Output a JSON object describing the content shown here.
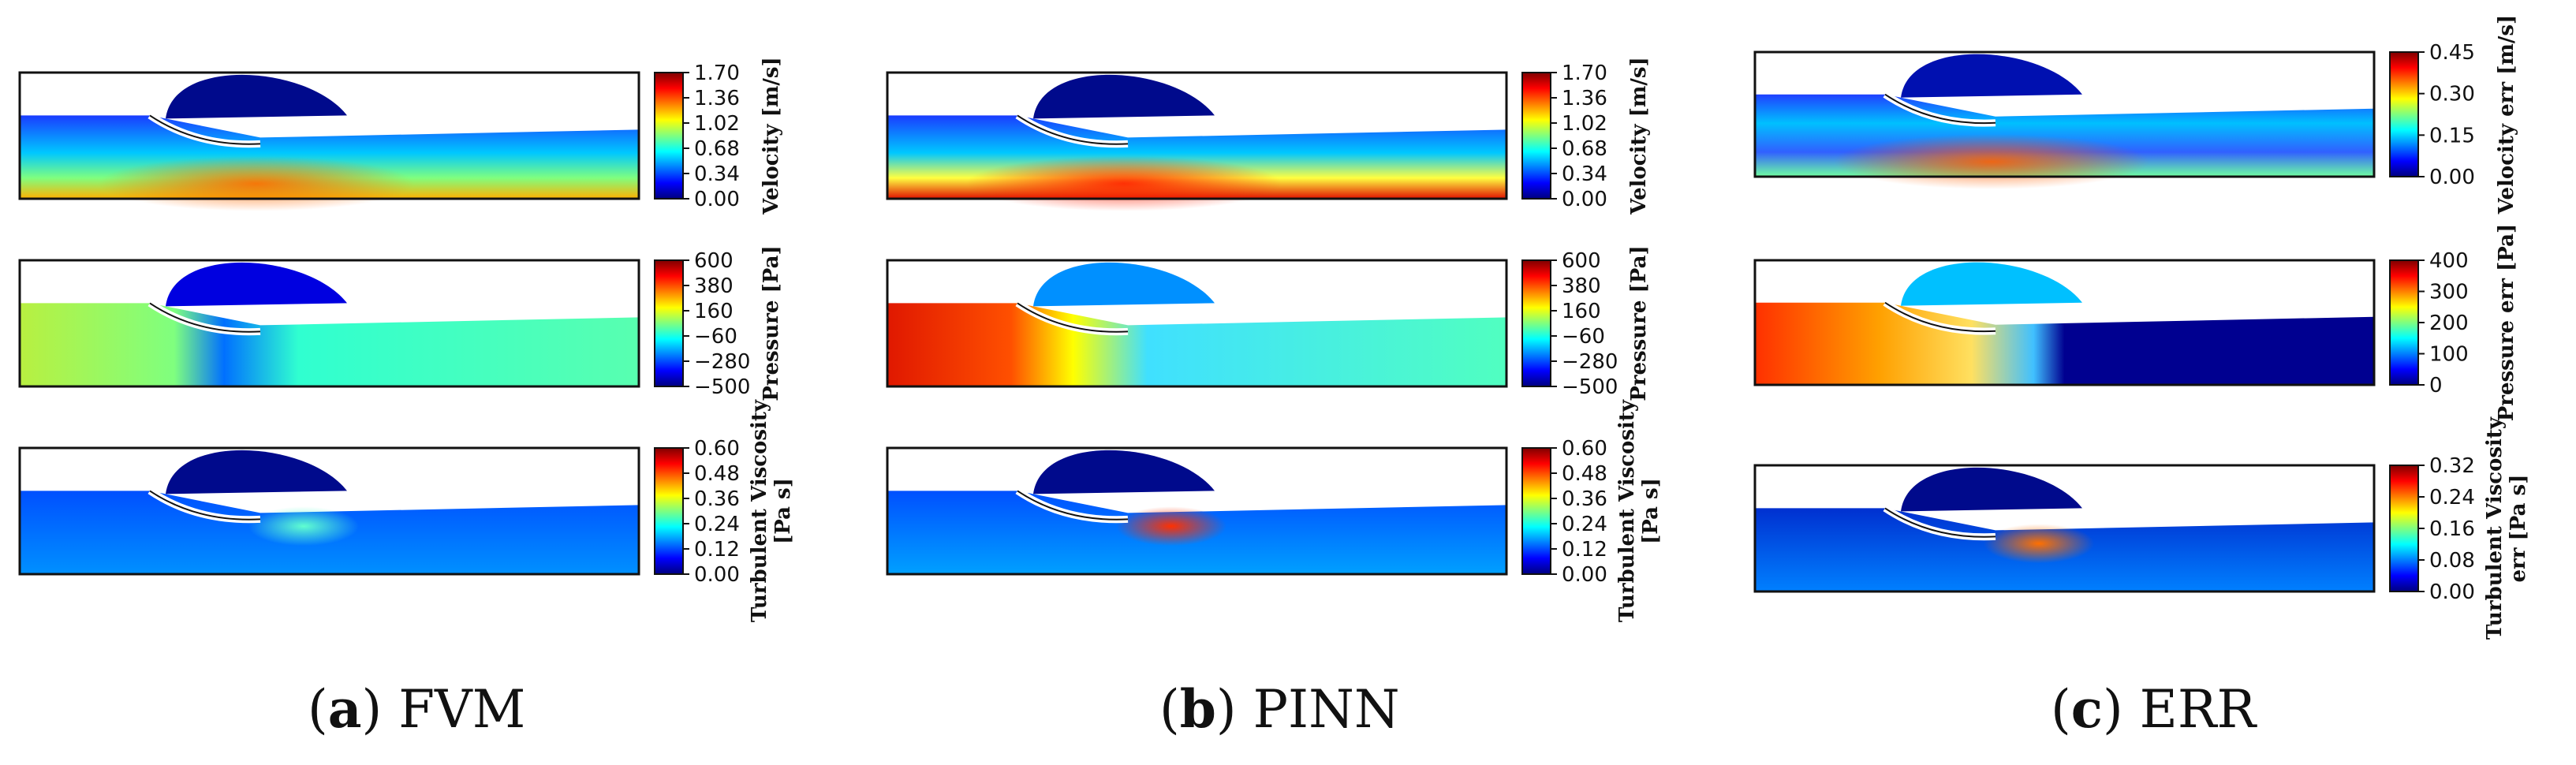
{
  "colors": {
    "jet_stops": [
      "#00007f",
      "#0000ff",
      "#007fff",
      "#00ffff",
      "#7fff7f",
      "#ffff00",
      "#ff7f00",
      "#ff0000",
      "#7f0000"
    ]
  },
  "columns": [
    {
      "caption_letter": "a",
      "caption_text": "FVM",
      "panels": [
        {
          "field": "velocity",
          "label_lines": [
            "Velocity [m/s]"
          ],
          "ticks": [
            "1.70",
            "1.36",
            "1.02",
            "0.68",
            "0.34",
            "0.00"
          ]
        },
        {
          "field": "pressure",
          "label_lines": [
            "Pressure [Pa]"
          ],
          "ticks": [
            "600",
            "380",
            "160",
            "−60",
            "−280",
            "−500"
          ]
        },
        {
          "field": "viscosity",
          "label_lines": [
            "Turbulent Viscosity",
            "[Pa s]"
          ],
          "ticks": [
            "0.60",
            "0.48",
            "0.36",
            "0.24",
            "0.12",
            "0.00"
          ]
        }
      ]
    },
    {
      "caption_letter": "b",
      "caption_text": "PINN",
      "panels": [
        {
          "field": "velocity_pinn",
          "label_lines": [
            "Velocity [m/s]"
          ],
          "ticks": [
            "1.70",
            "1.36",
            "1.02",
            "0.68",
            "0.34",
            "0.00"
          ]
        },
        {
          "field": "pressure_pinn",
          "label_lines": [
            "Pressure [Pa]"
          ],
          "ticks": [
            "600",
            "380",
            "160",
            "−60",
            "−280",
            "−500"
          ]
        },
        {
          "field": "viscosity_pinn",
          "label_lines": [
            "Turbulent Viscosity",
            "[Pa s]"
          ],
          "ticks": [
            "0.60",
            "0.48",
            "0.36",
            "0.24",
            "0.12",
            "0.00"
          ]
        }
      ]
    },
    {
      "caption_letter": "c",
      "caption_text": "ERR",
      "panels": [
        {
          "field": "velocity_err",
          "label_lines": [
            "Velocity err [m/s]"
          ],
          "ticks": [
            "0.45",
            "0.30",
            "0.15",
            "0.00"
          ]
        },
        {
          "field": "pressure_err",
          "label_lines": [
            "Pressure err [Pa]"
          ],
          "ticks": [
            "400",
            "300",
            "200",
            "100",
            "0"
          ]
        },
        {
          "field": "viscosity_err",
          "label_lines": [
            "Turbulent Viscosity",
            "err [Pa s]"
          ],
          "ticks": [
            "0.32",
            "0.24",
            "0.16",
            "0.08",
            "0.00"
          ]
        }
      ]
    }
  ]
}
